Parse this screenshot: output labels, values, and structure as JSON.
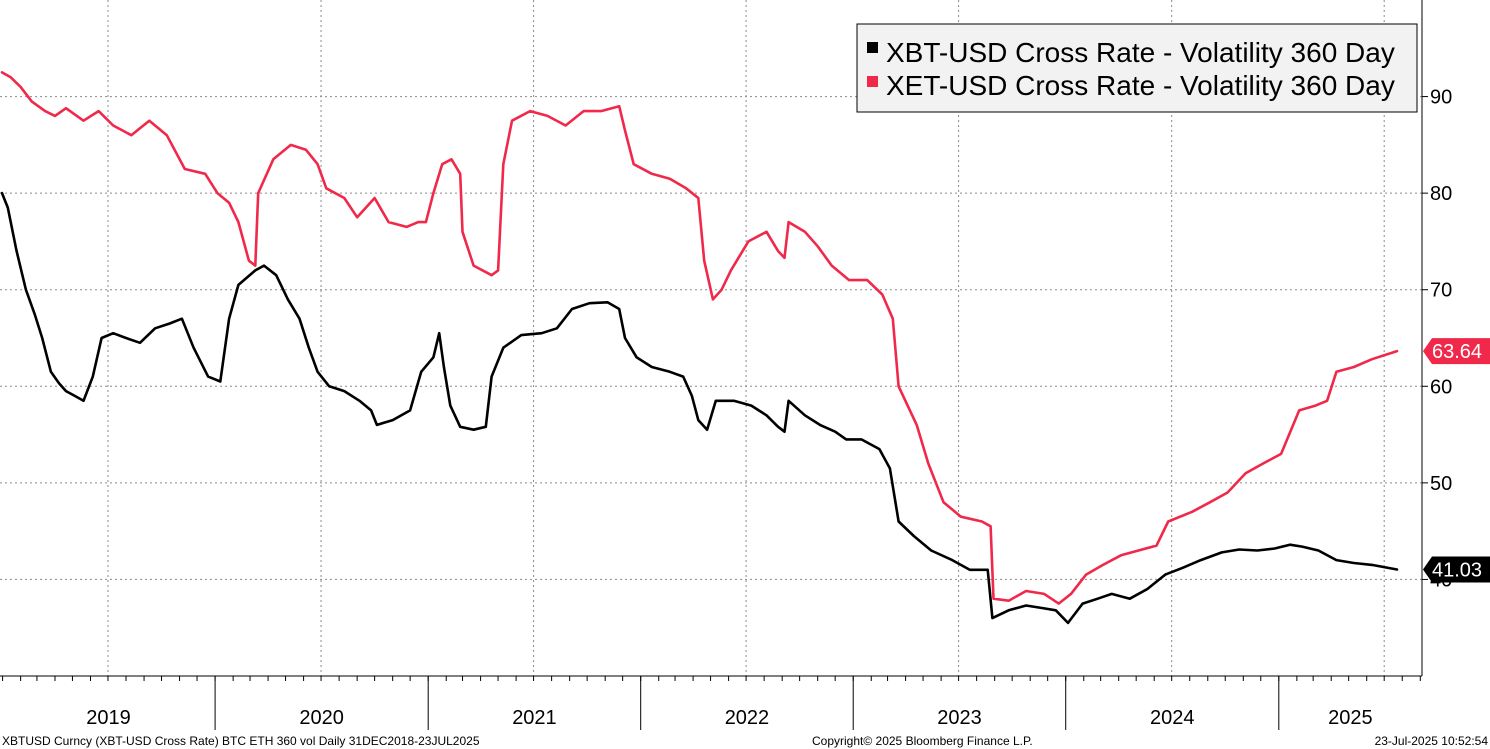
{
  "chart_data": {
    "type": "line",
    "x_range": [
      "2018-12-31",
      "2025-07-23"
    ],
    "y_range": [
      30,
      100
    ],
    "y_ticks": [
      40,
      50,
      60,
      70,
      80,
      90
    ],
    "x_tick_labels": [
      "2019",
      "2020",
      "2021",
      "2022",
      "2023",
      "2024",
      "2025"
    ],
    "grid": true,
    "legend_position": "top-right",
    "series": [
      {
        "name": "XBT-USD Cross Rate - Volatility 360 Day",
        "color": "#000000",
        "last_value": "41.03",
        "points": [
          [
            "2018-12-31",
            80.0
          ],
          [
            "2019-01-10",
            78.5
          ],
          [
            "2019-01-25",
            74.0
          ],
          [
            "2019-02-10",
            70.0
          ],
          [
            "2019-02-25",
            67.5
          ],
          [
            "2019-03-10",
            65.0
          ],
          [
            "2019-03-25",
            61.5
          ],
          [
            "2019-04-08",
            60.3
          ],
          [
            "2019-04-20",
            59.5
          ],
          [
            "2019-05-05",
            59.0
          ],
          [
            "2019-05-20",
            58.5
          ],
          [
            "2019-06-05",
            61.0
          ],
          [
            "2019-06-20",
            65.0
          ],
          [
            "2019-07-10",
            65.5
          ],
          [
            "2019-08-01",
            65.0
          ],
          [
            "2019-08-25",
            64.5
          ],
          [
            "2019-09-20",
            66.0
          ],
          [
            "2019-10-15",
            66.5
          ],
          [
            "2019-11-05",
            67.0
          ],
          [
            "2019-11-25",
            64.0
          ],
          [
            "2019-12-20",
            61.0
          ],
          [
            "2020-01-10",
            60.5
          ],
          [
            "2020-01-25",
            67.0
          ],
          [
            "2020-02-10",
            70.5
          ],
          [
            "2020-03-10",
            72.0
          ],
          [
            "2020-03-25",
            72.5
          ],
          [
            "2020-04-15",
            71.5
          ],
          [
            "2020-05-05",
            69.0
          ],
          [
            "2020-05-25",
            67.0
          ],
          [
            "2020-06-10",
            64.0
          ],
          [
            "2020-06-25",
            61.5
          ],
          [
            "2020-07-15",
            60.0
          ],
          [
            "2020-08-10",
            59.5
          ],
          [
            "2020-09-05",
            58.5
          ],
          [
            "2020-09-25",
            57.5
          ],
          [
            "2020-10-05",
            56.0
          ],
          [
            "2020-11-01",
            56.5
          ],
          [
            "2020-12-01",
            57.5
          ],
          [
            "2020-12-20",
            61.5
          ],
          [
            "2021-01-10",
            63.0
          ],
          [
            "2021-01-20",
            65.5
          ],
          [
            "2021-01-28",
            62.0
          ],
          [
            "2021-02-08",
            58.0
          ],
          [
            "2021-02-25",
            55.8
          ],
          [
            "2021-03-20",
            55.5
          ],
          [
            "2021-04-10",
            55.8
          ],
          [
            "2021-04-20",
            61.0
          ],
          [
            "2021-05-10",
            64.0
          ],
          [
            "2021-06-10",
            65.3
          ],
          [
            "2021-07-15",
            65.5
          ],
          [
            "2021-08-10",
            66.0
          ],
          [
            "2021-09-05",
            68.0
          ],
          [
            "2021-10-05",
            68.6
          ],
          [
            "2021-11-05",
            68.7
          ],
          [
            "2021-11-25",
            68.0
          ],
          [
            "2021-12-05",
            65.0
          ],
          [
            "2021-12-25",
            63.0
          ],
          [
            "2022-01-20",
            62.0
          ],
          [
            "2022-02-20",
            61.5
          ],
          [
            "2022-03-15",
            61.0
          ],
          [
            "2022-03-30",
            59.0
          ],
          [
            "2022-04-10",
            56.5
          ],
          [
            "2022-04-25",
            55.5
          ],
          [
            "2022-05-10",
            58.5
          ],
          [
            "2022-06-10",
            58.5
          ],
          [
            "2022-07-10",
            58.0
          ],
          [
            "2022-08-05",
            57.0
          ],
          [
            "2022-08-25",
            55.8
          ],
          [
            "2022-09-05",
            55.3
          ],
          [
            "2022-09-12",
            58.5
          ],
          [
            "2022-10-10",
            57.0
          ],
          [
            "2022-11-05",
            56.0
          ],
          [
            "2022-12-01",
            55.3
          ],
          [
            "2022-12-20",
            54.5
          ],
          [
            "2023-01-15",
            54.5
          ],
          [
            "2023-02-15",
            53.5
          ],
          [
            "2023-03-05",
            51.5
          ],
          [
            "2023-03-20",
            46.0
          ],
          [
            "2023-04-15",
            44.5
          ],
          [
            "2023-05-15",
            43.0
          ],
          [
            "2023-06-20",
            42.0
          ],
          [
            "2023-07-20",
            41.0
          ],
          [
            "2023-08-20",
            41.0
          ],
          [
            "2023-08-28",
            36.0
          ],
          [
            "2023-09-25",
            36.8
          ],
          [
            "2023-10-25",
            37.3
          ],
          [
            "2023-11-25",
            37.0
          ],
          [
            "2023-12-15",
            36.8
          ],
          [
            "2024-01-05",
            35.5
          ],
          [
            "2024-01-30",
            37.5
          ],
          [
            "2024-02-25",
            38.0
          ],
          [
            "2024-03-20",
            38.5
          ],
          [
            "2024-04-20",
            38.0
          ],
          [
            "2024-05-20",
            39.0
          ],
          [
            "2024-06-20",
            40.5
          ],
          [
            "2024-07-20",
            41.2
          ],
          [
            "2024-08-20",
            42.0
          ],
          [
            "2024-09-25",
            42.8
          ],
          [
            "2024-10-25",
            43.1
          ],
          [
            "2024-11-25",
            43.0
          ],
          [
            "2024-12-25",
            43.2
          ],
          [
            "2025-01-20",
            43.6
          ],
          [
            "2025-02-10",
            43.4
          ],
          [
            "2025-03-10",
            43.0
          ],
          [
            "2025-04-10",
            42.0
          ],
          [
            "2025-05-10",
            41.7
          ],
          [
            "2025-06-10",
            41.5
          ],
          [
            "2025-07-23",
            41.03
          ]
        ]
      },
      {
        "name": "XET-USD Cross Rate - Volatility 360 Day",
        "color": "#f0294a",
        "last_value": "63.64",
        "points": [
          [
            "2018-12-31",
            92.5
          ],
          [
            "2019-01-15",
            92.0
          ],
          [
            "2019-02-01",
            91.0
          ],
          [
            "2019-02-20",
            89.5
          ],
          [
            "2019-03-15",
            88.5
          ],
          [
            "2019-04-01",
            88.0
          ],
          [
            "2019-04-20",
            88.8
          ],
          [
            "2019-05-20",
            87.5
          ],
          [
            "2019-06-15",
            88.5
          ],
          [
            "2019-07-10",
            87.0
          ],
          [
            "2019-08-10",
            86.0
          ],
          [
            "2019-09-10",
            87.5
          ],
          [
            "2019-10-10",
            86.0
          ],
          [
            "2019-11-10",
            82.5
          ],
          [
            "2019-12-15",
            82.0
          ],
          [
            "2020-01-05",
            80.0
          ],
          [
            "2020-01-25",
            79.0
          ],
          [
            "2020-02-10",
            77.0
          ],
          [
            "2020-02-28",
            73.0
          ],
          [
            "2020-03-10",
            72.5
          ],
          [
            "2020-03-15",
            80.0
          ],
          [
            "2020-04-10",
            83.5
          ],
          [
            "2020-05-10",
            85.0
          ],
          [
            "2020-06-05",
            84.5
          ],
          [
            "2020-06-25",
            83.0
          ],
          [
            "2020-07-10",
            80.5
          ],
          [
            "2020-08-10",
            79.5
          ],
          [
            "2020-09-01",
            77.5
          ],
          [
            "2020-10-01",
            79.5
          ],
          [
            "2020-10-25",
            77.0
          ],
          [
            "2020-11-25",
            76.5
          ],
          [
            "2020-12-15",
            77.0
          ],
          [
            "2020-12-28",
            77.0
          ],
          [
            "2021-01-10",
            80.0
          ],
          [
            "2021-01-25",
            83.0
          ],
          [
            "2021-02-10",
            83.5
          ],
          [
            "2021-02-25",
            82.0
          ],
          [
            "2021-03-01",
            76.0
          ],
          [
            "2021-03-20",
            72.5
          ],
          [
            "2021-04-20",
            71.5
          ],
          [
            "2021-05-01",
            72.0
          ],
          [
            "2021-05-10",
            83.0
          ],
          [
            "2021-05-25",
            87.5
          ],
          [
            "2021-06-25",
            88.5
          ],
          [
            "2021-07-25",
            88.0
          ],
          [
            "2021-08-25",
            87.0
          ],
          [
            "2021-09-25",
            88.5
          ],
          [
            "2021-10-25",
            88.5
          ],
          [
            "2021-11-25",
            89.0
          ],
          [
            "2021-12-05",
            86.5
          ],
          [
            "2021-12-20",
            83.0
          ],
          [
            "2022-01-20",
            82.0
          ],
          [
            "2022-02-20",
            81.5
          ],
          [
            "2022-03-20",
            80.5
          ],
          [
            "2022-04-10",
            79.5
          ],
          [
            "2022-04-20",
            73.0
          ],
          [
            "2022-05-05",
            69.0
          ],
          [
            "2022-05-20",
            70.0
          ],
          [
            "2022-06-05",
            72.0
          ],
          [
            "2022-07-05",
            75.0
          ],
          [
            "2022-08-05",
            76.0
          ],
          [
            "2022-08-25",
            74.0
          ],
          [
            "2022-09-05",
            73.3
          ],
          [
            "2022-09-12",
            77.0
          ],
          [
            "2022-10-10",
            76.0
          ],
          [
            "2022-11-01",
            74.5
          ],
          [
            "2022-11-25",
            72.5
          ],
          [
            "2022-12-25",
            71.0
          ],
          [
            "2023-01-25",
            71.0
          ],
          [
            "2023-02-20",
            69.5
          ],
          [
            "2023-03-10",
            67.0
          ],
          [
            "2023-03-20",
            60.0
          ],
          [
            "2023-04-20",
            56.0
          ],
          [
            "2023-05-10",
            52.0
          ],
          [
            "2023-06-05",
            48.0
          ],
          [
            "2023-07-05",
            46.5
          ],
          [
            "2023-08-10",
            46.0
          ],
          [
            "2023-08-25",
            45.5
          ],
          [
            "2023-08-30",
            38.0
          ],
          [
            "2023-09-25",
            37.8
          ],
          [
            "2023-10-25",
            38.8
          ],
          [
            "2023-11-25",
            38.5
          ],
          [
            "2023-12-20",
            37.5
          ],
          [
            "2024-01-10",
            38.5
          ],
          [
            "2024-02-05",
            40.5
          ],
          [
            "2024-03-05",
            41.5
          ],
          [
            "2024-04-05",
            42.5
          ],
          [
            "2024-05-05",
            43.0
          ],
          [
            "2024-06-05",
            43.5
          ],
          [
            "2024-06-25",
            46.0
          ],
          [
            "2024-08-05",
            47.0
          ],
          [
            "2024-09-05",
            48.0
          ],
          [
            "2024-10-05",
            49.0
          ],
          [
            "2024-11-05",
            51.0
          ],
          [
            "2024-12-05",
            52.0
          ],
          [
            "2025-01-05",
            53.0
          ],
          [
            "2025-02-05",
            57.5
          ],
          [
            "2025-03-05",
            58.0
          ],
          [
            "2025-03-25",
            58.5
          ],
          [
            "2025-04-10",
            61.5
          ],
          [
            "2025-05-10",
            62.0
          ],
          [
            "2025-06-10",
            62.8
          ],
          [
            "2025-07-23",
            63.64
          ]
        ]
      }
    ]
  },
  "footer": {
    "left": "XBTUSD Curncy (XBT-USD Cross Rate) BTC ETH 360 vol  Daily 31DEC2018-23JUL2025",
    "center": "Copyright© 2025 Bloomberg Finance L.P.",
    "right": "23-Jul-2025 10:52:54"
  }
}
